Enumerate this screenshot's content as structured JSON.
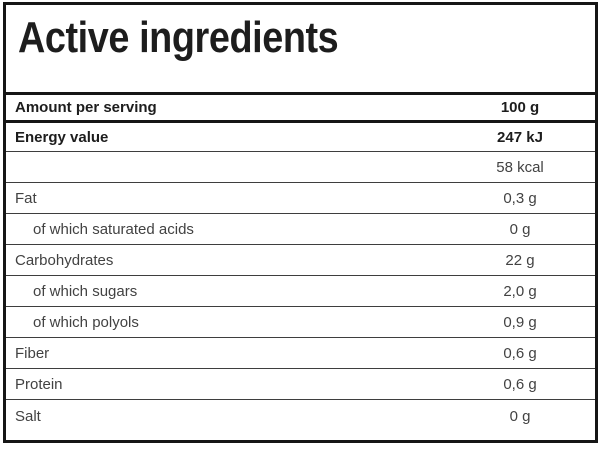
{
  "label": {
    "title": "Active ingredients",
    "header": {
      "name": "Amount per serving",
      "value": "100 g"
    },
    "rows": [
      {
        "name": "Energy value",
        "value": "247 kJ"
      },
      {
        "name": "",
        "value": "58 kcal"
      },
      {
        "name": "Fat",
        "value": "0,3 g"
      },
      {
        "name": "of which saturated acids",
        "value": "0 g"
      },
      {
        "name": "Carbohydrates",
        "value": "22 g"
      },
      {
        "name": "of which sugars",
        "value": "2,0 g"
      },
      {
        "name": "of which polyols",
        "value": "0,9 g"
      },
      {
        "name": "Fiber",
        "value": "0,6 g"
      },
      {
        "name": "Protein",
        "value": "0,6 g"
      },
      {
        "name": "Salt",
        "value": "0 g"
      }
    ],
    "colors": {
      "border": "#161616",
      "separator": "#3e3e3e",
      "text_bold": "#1d1d1d",
      "text_regular": "#424242",
      "background": "#ffffff"
    }
  }
}
